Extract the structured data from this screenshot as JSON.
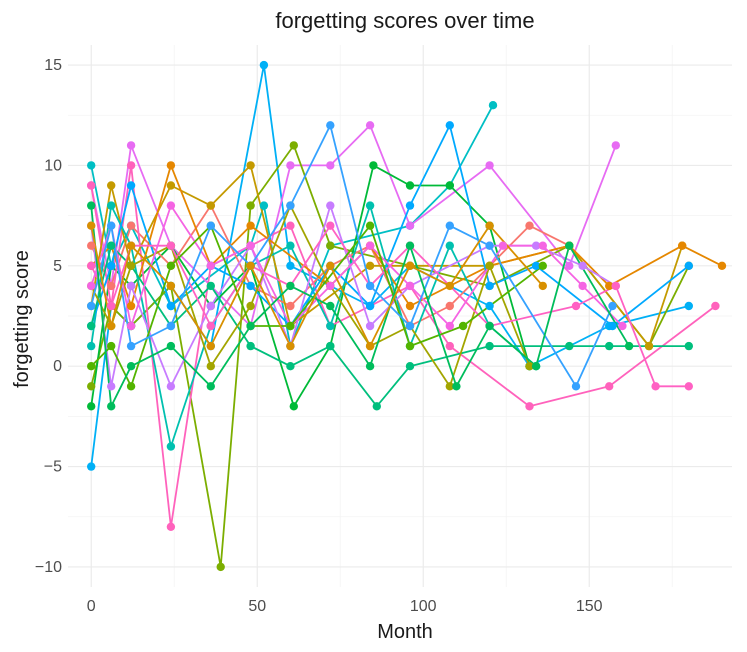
{
  "chart_data": {
    "type": "line",
    "title": "forgetting scores over time",
    "xlabel": "Month",
    "ylabel": "forgetting score",
    "xlim": [
      -7,
      193
    ],
    "ylim": [
      -11,
      16
    ],
    "xticks": [
      0,
      50,
      100,
      150
    ],
    "yticks": [
      -10,
      -5,
      0,
      5,
      10,
      15
    ],
    "xtick_labels": [
      "0",
      "50",
      "100",
      "150"
    ],
    "ytick_labels": [
      "−10",
      "−5",
      "0",
      "5",
      "10",
      "15"
    ],
    "grid": true,
    "legend": "none",
    "series": [
      {
        "color": "#00BFC4",
        "x": [
          0,
          6,
          12,
          24,
          48,
          52,
          60,
          72,
          96,
          108,
          121
        ],
        "y": [
          10,
          5,
          7,
          3,
          6,
          8,
          1,
          6,
          7,
          9,
          13
        ]
      },
      {
        "color": "#00B0F6",
        "x": [
          0,
          6,
          12,
          24,
          36,
          52,
          60,
          84,
          96,
          120,
          132,
          156,
          180
        ],
        "y": [
          -5,
          3,
          2,
          4,
          1,
          15,
          5,
          3,
          5,
          3,
          0,
          2,
          3
        ]
      },
      {
        "color": "#E76BF3",
        "x": [
          0,
          6,
          12,
          24,
          48,
          60,
          72,
          84,
          96,
          120,
          144,
          158
        ],
        "y": [
          9,
          4,
          11,
          6,
          2,
          10,
          10,
          12,
          7,
          10,
          5,
          11
        ]
      },
      {
        "color": "#7CAE00",
        "x": [
          0,
          6,
          12,
          24,
          39,
          48,
          61,
          72,
          96,
          120,
          144,
          168,
          180
        ],
        "y": [
          -1,
          3,
          2,
          4,
          -10,
          8,
          11,
          6,
          5,
          4,
          6,
          1,
          5
        ]
      },
      {
        "color": "#00BA38",
        "x": [
          0,
          6,
          12,
          24,
          36,
          48,
          61,
          72,
          85,
          96,
          108,
          120,
          132
        ],
        "y": [
          -2,
          5,
          4,
          6,
          3,
          5,
          -2,
          1,
          10,
          9,
          9,
          7,
          0
        ]
      },
      {
        "color": "#F8766D",
        "x": [
          0,
          6,
          12,
          24,
          36,
          48,
          60,
          72,
          84,
          96,
          108,
          132,
          144
        ],
        "y": [
          6,
          4,
          7,
          5,
          8,
          4,
          3,
          5,
          6,
          2,
          3,
          7,
          6
        ]
      },
      {
        "color": "#FF62BC",
        "x": [
          0,
          6,
          12,
          24,
          36,
          48,
          60,
          72,
          96,
          108,
          132,
          156,
          188
        ],
        "y": [
          9,
          3,
          10,
          -8,
          5,
          6,
          7,
          2,
          4,
          1,
          -2,
          -1,
          3
        ]
      },
      {
        "color": "#C49A00",
        "x": [
          0,
          6,
          12,
          24,
          36,
          48,
          60,
          84,
          96,
          120,
          144,
          168,
          178
        ],
        "y": [
          3,
          9,
          5,
          9,
          8,
          10,
          2,
          5,
          5,
          5,
          6,
          1,
          6
        ]
      },
      {
        "color": "#E58700",
        "x": [
          0,
          6,
          12,
          24,
          36,
          48,
          72,
          84,
          96,
          120,
          144,
          156,
          178,
          190
        ],
        "y": [
          5,
          6,
          3,
          10,
          5,
          7,
          4,
          6,
          3,
          5,
          6,
          4,
          6,
          5
        ]
      },
      {
        "color": "#00C0AF",
        "x": [
          0,
          6,
          12,
          24,
          36,
          48,
          60,
          72,
          84,
          96,
          108,
          120,
          134
        ],
        "y": [
          1,
          8,
          6,
          -4,
          2,
          5,
          6,
          2,
          8,
          1,
          6,
          2,
          0
        ]
      },
      {
        "color": "#00A9FF",
        "x": [
          0,
          6,
          12,
          24,
          36,
          48,
          60,
          72,
          84,
          96,
          108,
          120,
          134,
          157,
          180
        ],
        "y": [
          2,
          5,
          9,
          3,
          5,
          4,
          2,
          5,
          3,
          8,
          12,
          4,
          5,
          2,
          5
        ]
      },
      {
        "color": "#C77CFF",
        "x": [
          0,
          6,
          12,
          24,
          36,
          48,
          60,
          72,
          84,
          96,
          120,
          134,
          148,
          158
        ],
        "y": [
          7,
          -1,
          4,
          -1,
          3,
          6,
          1,
          8,
          2,
          4,
          6,
          6,
          5,
          4
        ]
      },
      {
        "color": "#00BF7D",
        "x": [
          0,
          6,
          12,
          24,
          36,
          48,
          60,
          72,
          86,
          96,
          120,
          144,
          156,
          180
        ],
        "y": [
          2,
          6,
          5,
          2,
          4,
          1,
          0,
          1,
          -2,
          0,
          1,
          1,
          1,
          1
        ]
      },
      {
        "color": "#A3A500",
        "x": [
          0,
          6,
          12,
          24,
          36,
          48,
          60,
          72,
          84,
          96,
          108,
          120,
          132
        ],
        "y": [
          4,
          2,
          5,
          6,
          0,
          3,
          8,
          4,
          1,
          2,
          -1,
          5,
          0
        ]
      },
      {
        "color": "#FF61C3",
        "x": [
          0,
          6,
          12,
          24,
          36,
          48,
          60,
          72,
          84,
          96,
          120,
          146,
          158,
          170,
          180
        ],
        "y": [
          5,
          3,
          6,
          6,
          2,
          5,
          4,
          7,
          4,
          6,
          2,
          3,
          4,
          -1,
          -1
        ]
      },
      {
        "color": "#F564E3",
        "x": [
          0,
          6,
          12,
          24,
          36,
          48,
          60,
          72,
          84,
          96,
          108,
          124,
          136,
          148,
          160
        ],
        "y": [
          4,
          7,
          2,
          8,
          5,
          6,
          2,
          4,
          6,
          4,
          2,
          6,
          6,
          4,
          2
        ]
      },
      {
        "color": "#53B400",
        "x": [
          0,
          6,
          12,
          24,
          36,
          48,
          60,
          84,
          96,
          112,
          136
        ],
        "y": [
          0,
          1,
          -1,
          5,
          7,
          2,
          2,
          7,
          1,
          2,
          5
        ]
      },
      {
        "color": "#35A2FF",
        "x": [
          0,
          6,
          12,
          24,
          36,
          48,
          60,
          72,
          84,
          96,
          108,
          120,
          146,
          157
        ],
        "y": [
          3,
          7,
          1,
          2,
          7,
          5,
          8,
          12,
          4,
          2,
          7,
          6,
          -1,
          3
        ]
      },
      {
        "color": "#00BD5C",
        "x": [
          0,
          6,
          12,
          24,
          36,
          48,
          60,
          72,
          84,
          96,
          110,
          120,
          134,
          144,
          162
        ],
        "y": [
          8,
          -2,
          0,
          1,
          -1,
          2,
          4,
          3,
          0,
          6,
          -1,
          2,
          0,
          6,
          1
        ]
      },
      {
        "color": "#D89000",
        "x": [
          0,
          6,
          12,
          24,
          36,
          48,
          60,
          72,
          84,
          96,
          108,
          120,
          136
        ],
        "y": [
          7,
          2,
          6,
          4,
          1,
          5,
          1,
          5,
          1,
          5,
          4,
          7,
          4
        ]
      }
    ]
  }
}
